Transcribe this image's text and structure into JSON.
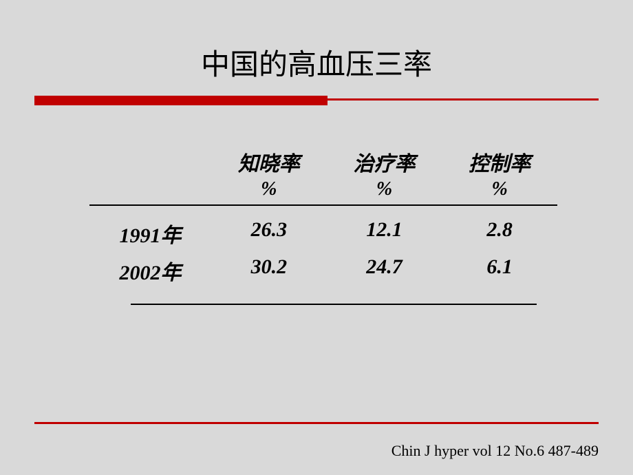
{
  "title": "中国的高血压三率",
  "table": {
    "columns": [
      "知晓率",
      "治疗率",
      "控制率"
    ],
    "unit": "%",
    "rows": [
      {
        "label": "1991年",
        "values": [
          "26.3",
          "12.1",
          "2.8"
        ]
      },
      {
        "label": "2002年",
        "values": [
          "30.2",
          "24.7",
          "6.1"
        ]
      }
    ]
  },
  "citation": "Chin J hyper vol 12 No.6 487-489",
  "styling": {
    "background_color": "#d9d9d9",
    "accent_color": "#c00000",
    "text_color": "#000000",
    "title_fontsize": 42,
    "body_fontsize": 30,
    "citation_fontsize": 22
  }
}
